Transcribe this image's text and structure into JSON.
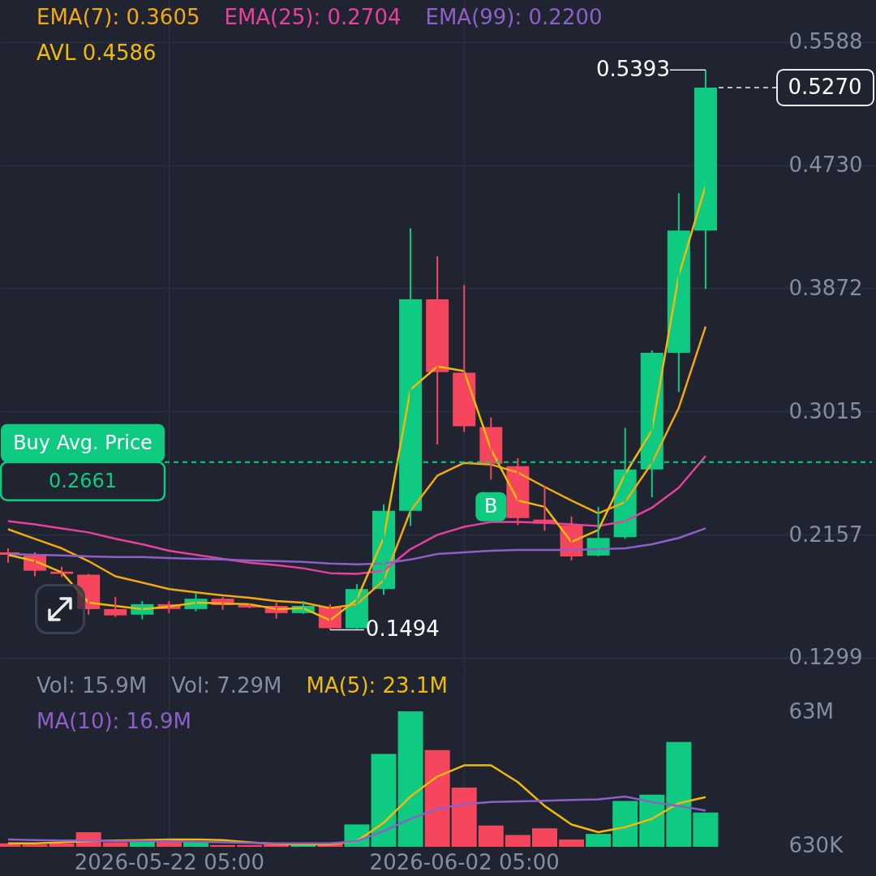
{
  "chart_data": [
    {
      "type": "candlestick",
      "x": [
        "2026-05-16T05:00",
        "2026-05-17T05:00",
        "2026-05-18T05:00",
        "2026-05-19T05:00",
        "2026-05-20T05:00",
        "2026-05-21T05:00",
        "2026-05-22T05:00",
        "2026-05-23T05:00",
        "2026-05-24T05:00",
        "2026-05-25T05:00",
        "2026-05-26T05:00",
        "2026-05-27T05:00",
        "2026-05-28T05:00",
        "2026-05-29T05:00",
        "2026-05-30T05:00",
        "2026-05-31T05:00",
        "2026-06-01T05:00",
        "2026-06-02T05:00",
        "2026-06-03T05:00",
        "2026-06-04T05:00",
        "2026-06-05T05:00",
        "2026-06-06T05:00",
        "2026-06-07T05:00",
        "2026-06-08T05:00",
        "2026-06-09T05:00",
        "2026-06-10T05:00",
        "2026-06-11T05:00"
      ],
      "ohlc": [
        [
          0.2033,
          0.2061,
          0.1961,
          0.2016
        ],
        [
          0.2011,
          0.2033,
          0.1866,
          0.1905
        ],
        [
          0.1899,
          0.1933,
          0.1861,
          0.1883
        ],
        [
          0.1877,
          0.1883,
          0.1599,
          0.1638
        ],
        [
          0.1638,
          0.1722,
          0.1583,
          0.1594
        ],
        [
          0.1599,
          0.1694,
          0.1566,
          0.1672
        ],
        [
          0.1672,
          0.1694,
          0.161,
          0.1638
        ],
        [
          0.1638,
          0.1749,
          0.1622,
          0.171
        ],
        [
          0.171,
          0.1722,
          0.1633,
          0.1666
        ],
        [
          0.1666,
          0.1677,
          0.1644,
          0.1649
        ],
        [
          0.166,
          0.1683,
          0.1572,
          0.161
        ],
        [
          0.161,
          0.1694,
          0.1605,
          0.166
        ],
        [
          0.1655,
          0.1672,
          0.1494,
          0.1505
        ],
        [
          0.1505,
          0.1811,
          0.15,
          0.1777
        ],
        [
          0.1777,
          0.2367,
          0.1738,
          0.2322
        ],
        [
          0.2322,
          0.429,
          0.2216,
          0.3795
        ],
        [
          0.3795,
          0.4096,
          0.2783,
          0.3289
        ],
        [
          0.3284,
          0.3896,
          0.2872,
          0.2911
        ],
        [
          0.2906,
          0.2973,
          0.2539,
          0.265
        ],
        [
          0.2633,
          0.2689,
          0.2222,
          0.2272
        ],
        [
          0.2261,
          0.2494,
          0.2183,
          0.2233
        ],
        [
          0.2222,
          0.2283,
          0.1977,
          0.2005
        ],
        [
          0.2011,
          0.235,
          0.2005,
          0.2133
        ],
        [
          0.2139,
          0.29,
          0.2127,
          0.2611
        ],
        [
          0.2611,
          0.344,
          0.2417,
          0.3423
        ],
        [
          0.3423,
          0.4535,
          0.315,
          0.4274
        ],
        [
          0.4274,
          0.5393,
          0.3868,
          0.527
        ]
      ],
      "colors": [
        "#f6465d",
        "#f6465d",
        "#f6465d",
        "#f6465d",
        "#f6465d",
        "#0ecb81",
        "#f6465d",
        "#0ecb81",
        "#f6465d",
        "#f6465d",
        "#f6465d",
        "#0ecb81",
        "#f6465d",
        "#0ecb81",
        "#0ecb81",
        "#0ecb81",
        "#f6465d",
        "#f6465d",
        "#f6465d",
        "#f6465d",
        "#f6465d",
        "#f6465d",
        "#0ecb81",
        "#0ecb81",
        "#0ecb81",
        "#0ecb81",
        "#0ecb81"
      ],
      "series": [
        {
          "name": "EMA(7): 0.3605",
          "type": "line",
          "color": "#f3a712",
          "values": [
            0.2194,
            0.2127,
            0.2061,
            0.1972,
            0.1866,
            0.1822,
            0.1777,
            0.1755,
            0.1733,
            0.1716,
            0.1694,
            0.1683,
            0.1644,
            0.1672,
            0.1838,
            0.2322,
            0.2567,
            0.2656,
            0.2645,
            0.2589,
            0.2489,
            0.2394,
            0.2305,
            0.2383,
            0.2656,
            0.3039,
            0.3605
          ]
        },
        {
          "name": "EMA(25): 0.2704",
          "type": "line",
          "color": "#e8409f",
          "values": [
            0.225,
            0.2228,
            0.22,
            0.2172,
            0.2127,
            0.2089,
            0.2044,
            0.2016,
            0.1988,
            0.1961,
            0.1944,
            0.1922,
            0.1888,
            0.1883,
            0.1905,
            0.2055,
            0.2155,
            0.2211,
            0.2244,
            0.2244,
            0.2239,
            0.2228,
            0.2216,
            0.225,
            0.2344,
            0.2483,
            0.2704
          ]
        },
        {
          "name": "EMA(99): 0.2200",
          "type": "line",
          "color": "#8e5fc8",
          "values": [
            0.2022,
            0.2016,
            0.2011,
            0.2005,
            0.2,
            0.2,
            0.1994,
            0.1988,
            0.1983,
            0.1977,
            0.1972,
            0.1966,
            0.1955,
            0.195,
            0.1955,
            0.1983,
            0.2022,
            0.2033,
            0.2044,
            0.205,
            0.205,
            0.205,
            0.2055,
            0.2061,
            0.2089,
            0.2133,
            0.22
          ]
        },
        {
          "name": "AVL 0.4586",
          "type": "line",
          "color": "#f0b90b",
          "values": [
            0.2016,
            0.1972,
            0.1894,
            0.1683,
            0.166,
            0.1638,
            0.1655,
            0.1683,
            0.1677,
            0.1672,
            0.1638,
            0.1644,
            0.156,
            0.1705,
            0.2133,
            0.3167,
            0.3328,
            0.3295,
            0.275,
            0.2394,
            0.235,
            0.2105,
            0.2189,
            0.2578,
            0.2884,
            0.3962,
            0.4586
          ]
        }
      ],
      "xlim": [
        "2026-05-16T01:24",
        "2026-06-17T09:48"
      ],
      "xticks": [
        {
          "value": "2026-05-22T05:00",
          "label": null
        },
        {
          "value": "2026-06-02T05:00",
          "label": null
        }
      ],
      "ylim": [
        0.1225,
        0.588
      ],
      "yticks": [
        {
          "value": 0.1299,
          "label": "0.1299"
        },
        {
          "value": 0.2157,
          "label": "0.2157"
        },
        {
          "value": 0.3015,
          "label": "0.3015"
        },
        {
          "value": 0.3872,
          "label": "0.3872"
        },
        {
          "value": 0.473,
          "label": "0.4730"
        },
        {
          "value": 0.5588,
          "label": "0.5588"
        }
      ],
      "grid": true,
      "tick_labels": "y",
      "ref_lines": [
        {
          "axis": "y",
          "value": 0.2661,
          "label": "Buy Avg. Price",
          "color": "#0ecb81",
          "line_style": "dashed"
        },
        {
          "axis": "y",
          "value": 0.527,
          "label": "0.5270",
          "color": "#b7bdc6",
          "line_style": "dashed"
        }
      ],
      "annotations": [
        {
          "text": "0.5393",
          "x": "2026-06-11T05:00",
          "y": 0.5393
        },
        {
          "text": "0.1494",
          "x": "2026-05-28T05:00",
          "y": 0.1494
        },
        {
          "text": "B",
          "x": "2026-06-03T05:00",
          "y": 0.235
        },
        {
          "text": "0.2661",
          "y": 0.2661
        }
      ]
    },
    {
      "type": "bar",
      "x": [
        "2026-05-16T05:00",
        "2026-05-17T05:00",
        "2026-05-18T05:00",
        "2026-05-19T05:00",
        "2026-05-20T05:00",
        "2026-05-21T05:00",
        "2026-05-22T05:00",
        "2026-05-23T05:00",
        "2026-05-24T05:00",
        "2026-05-25T05:00",
        "2026-05-26T05:00",
        "2026-05-27T05:00",
        "2026-05-28T05:00",
        "2026-05-29T05:00",
        "2026-05-30T05:00",
        "2026-05-31T05:00",
        "2026-06-01T05:00",
        "2026-06-02T05:00",
        "2026-06-03T05:00",
        "2026-06-04T05:00",
        "2026-06-05T05:00",
        "2026-06-06T05:00",
        "2026-06-07T05:00",
        "2026-06-08T05:00",
        "2026-06-09T05:00",
        "2026-06-10T05:00",
        "2026-06-11T05:00"
      ],
      "series": [
        {
          "values": [
            1600000,
            1100000,
            1600000,
            6800000,
            2100000,
            2600000,
            2600000,
            2600000,
            800000,
            800000,
            1300000,
            800000,
            1600000,
            10400000,
            43200000,
            63000000,
            45000000,
            27500000,
            9900000,
            5500000,
            8600000,
            3400000,
            6000000,
            21300000,
            24200000,
            48800000,
            15900000
          ],
          "colors": [
            "#f6465d",
            "#f6465d",
            "#f6465d",
            "#f6465d",
            "#f6465d",
            "#0ecb81",
            "#f6465d",
            "#0ecb81",
            "#f6465d",
            "#f6465d",
            "#f6465d",
            "#0ecb81",
            "#f6465d",
            "#0ecb81",
            "#0ecb81",
            "#0ecb81",
            "#f6465d",
            "#f6465d",
            "#f6465d",
            "#f6465d",
            "#f6465d",
            "#f6465d",
            "#0ecb81",
            "#0ecb81",
            "#0ecb81",
            "#0ecb81",
            "#0ecb81"
          ]
        },
        {
          "name": "MA(5): 23.1M",
          "type": "line",
          "color": "#f0b90b",
          "values": [
            1600000,
            1600000,
            2100000,
            2600000,
            2900000,
            3100000,
            3400000,
            3400000,
            3100000,
            2100000,
            1300000,
            1100000,
            1100000,
            2600000,
            11200000,
            23400000,
            32700000,
            37900000,
            37900000,
            30100000,
            19000000,
            10400000,
            6800000,
            9100000,
            13000000,
            20300000,
            23100000
          ]
        },
        {
          "name": "MA(10): 16.9M",
          "type": "line",
          "color": "#8e5fc8",
          "values": [
            3400000,
            3100000,
            2900000,
            2900000,
            2600000,
            2600000,
            2600000,
            2400000,
            2100000,
            1800000,
            1600000,
            1600000,
            1600000,
            2600000,
            7300000,
            13000000,
            17700000,
            19800000,
            20800000,
            21100000,
            21400000,
            21800000,
            22100000,
            23400000,
            20800000,
            19000000,
            16900000
          ]
        }
      ],
      "xlim": [
        "2026-05-16T01:24",
        "2026-06-17T09:48"
      ],
      "xticks": [
        {
          "value": "2026-05-22T05:00",
          "label": "2026-05-22 05:00"
        },
        {
          "value": "2026-06-02T05:00",
          "label": "2026-06-02 05:00"
        }
      ],
      "ylim": [
        0,
        83000000
      ],
      "yticks": [
        {
          "value": 630000,
          "label": "630K"
        },
        {
          "value": 63000000,
          "label": "63M"
        }
      ],
      "grid": "x",
      "annotations": [
        "Vol: 15.9M",
        "Vol: 7.29M"
      ]
    }
  ]
}
